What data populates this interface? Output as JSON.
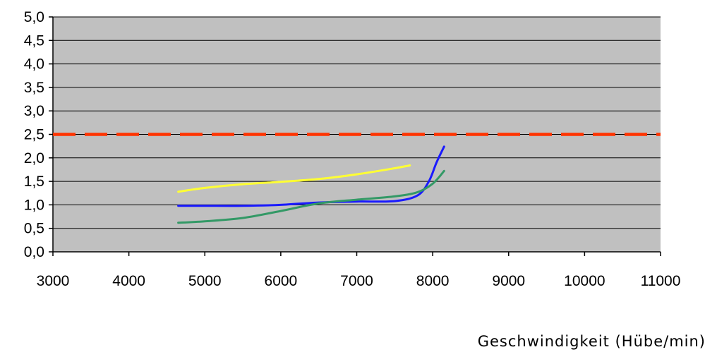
{
  "chart_data": {
    "type": "line",
    "title": "",
    "xlabel": "Geschwindigkeit (Hübe/min)",
    "ylabel": "",
    "xlim": [
      3000,
      11000
    ],
    "ylim": [
      0,
      5
    ],
    "x_ticks": [
      3000,
      4000,
      5000,
      6000,
      7000,
      8000,
      9000,
      10000,
      11000
    ],
    "x_tick_labels": [
      "3000",
      "4000",
      "5000",
      "6000",
      "7000",
      "8000",
      "9000",
      "10000",
      "11000"
    ],
    "y_ticks": [
      0,
      0.5,
      1,
      1.5,
      2,
      2.5,
      3,
      3.5,
      4,
      4.5,
      5
    ],
    "y_tick_labels": [
      "0,0",
      "0,5",
      "1,0",
      "1,5",
      "2,0",
      "2,5",
      "3,0",
      "3,5",
      "4,0",
      "4,5",
      "5,0"
    ],
    "grid": "horizontal",
    "legend": "none",
    "background_color": "#c0c0c0",
    "reference_line": {
      "y": 2.5,
      "color": "#ff3300",
      "style": "dashed"
    },
    "series": [
      {
        "color": "#ffff33",
        "x": [
          4650,
          5000,
          5500,
          6000,
          6500,
          7000,
          7500,
          7700
        ],
        "y": [
          1.28,
          1.36,
          1.44,
          1.49,
          1.55,
          1.65,
          1.78,
          1.84
        ]
      },
      {
        "color": "#1a1aff",
        "x": [
          4650,
          5000,
          5500,
          6000,
          6500,
          7000,
          7500,
          7800,
          7950,
          8050,
          8150
        ],
        "y": [
          0.98,
          0.98,
          0.98,
          1.0,
          1.05,
          1.07,
          1.08,
          1.2,
          1.5,
          1.9,
          2.24
        ]
      },
      {
        "color": "#339966",
        "x": [
          4650,
          5000,
          5500,
          6000,
          6500,
          7000,
          7500,
          7800,
          8000,
          8150
        ],
        "y": [
          0.62,
          0.65,
          0.72,
          0.87,
          1.03,
          1.11,
          1.18,
          1.27,
          1.45,
          1.72
        ]
      }
    ]
  }
}
